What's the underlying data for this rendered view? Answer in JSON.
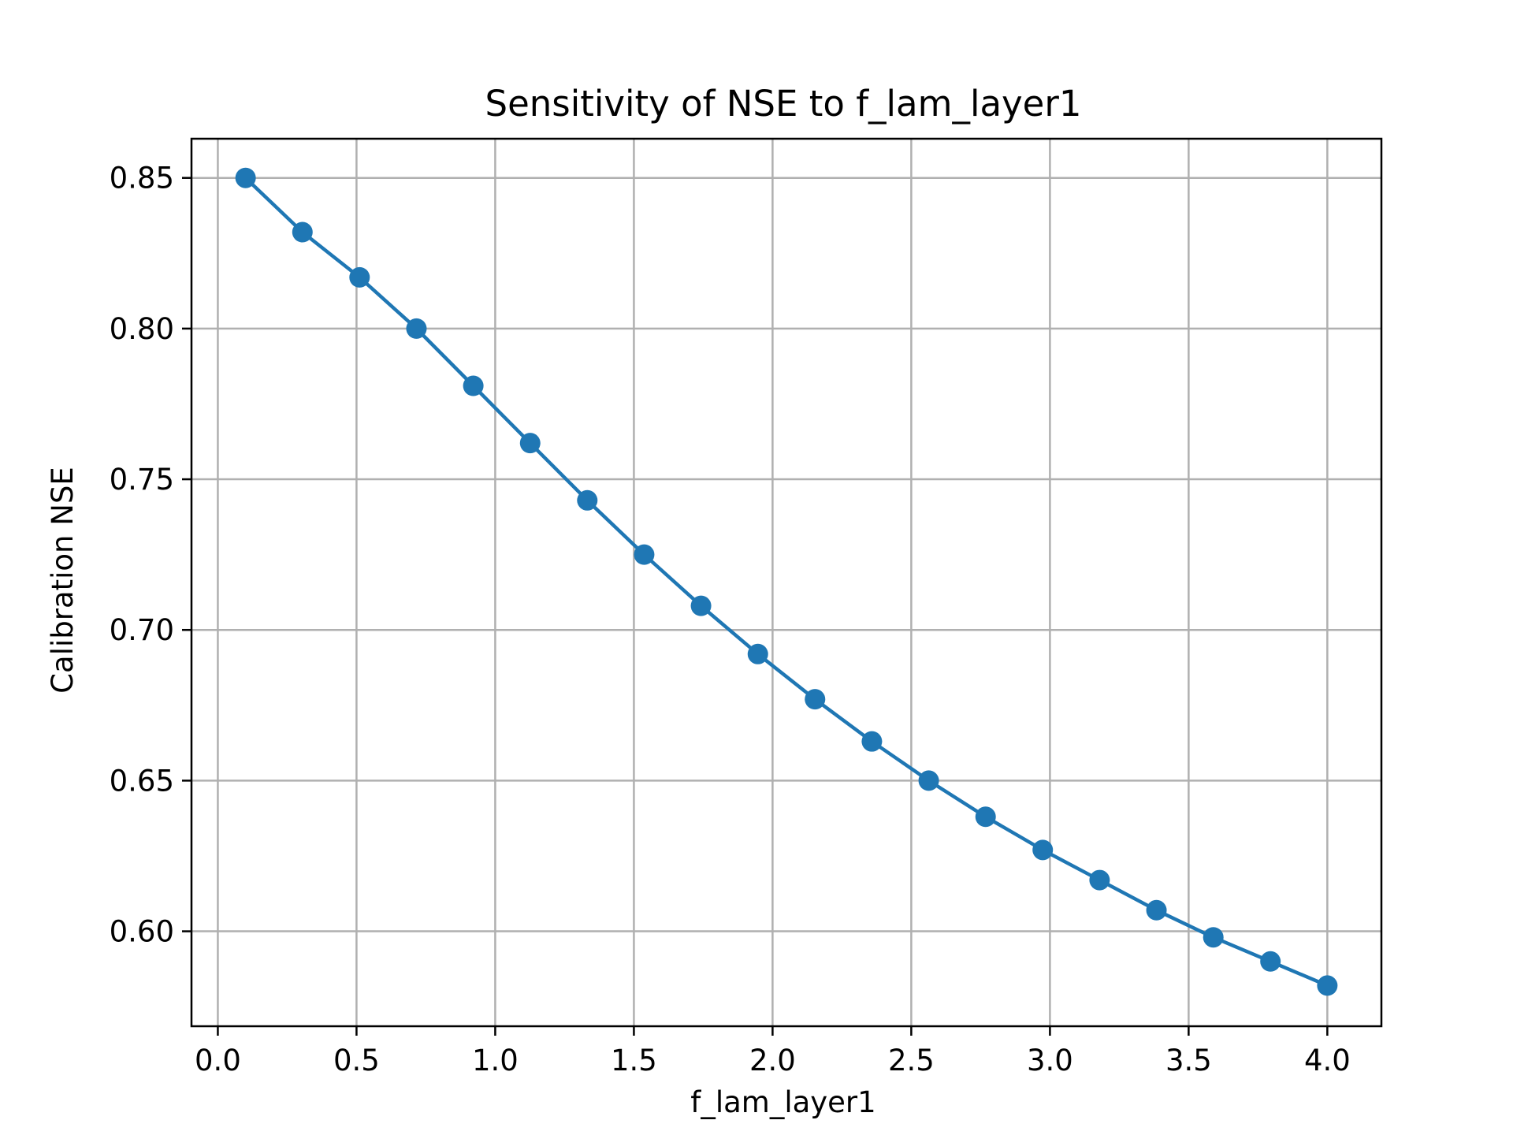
{
  "chart_data": {
    "type": "line",
    "title": "Sensitivity of NSE to f_lam_layer1",
    "xlabel": "f_lam_layer1",
    "ylabel": "Calibration NSE",
    "xlim": [
      -0.095,
      4.195
    ],
    "ylim": [
      0.5685,
      0.863
    ],
    "x_ticks": [
      0.0,
      0.5,
      1.0,
      1.5,
      2.0,
      2.5,
      3.0,
      3.5,
      4.0
    ],
    "x_tick_labels": [
      "0.0",
      "0.5",
      "1.0",
      "1.5",
      "2.0",
      "2.5",
      "3.0",
      "3.5",
      "4.0"
    ],
    "y_ticks": [
      0.6,
      0.65,
      0.7,
      0.75,
      0.8,
      0.85
    ],
    "y_tick_labels": [
      "0.60",
      "0.65",
      "0.70",
      "0.75",
      "0.80",
      "0.85"
    ],
    "grid": true,
    "series": [
      {
        "color": "#1f77b4",
        "marker": "circle",
        "x": [
          0.1,
          0.305,
          0.511,
          0.716,
          0.921,
          1.126,
          1.332,
          1.537,
          1.742,
          1.947,
          2.153,
          2.358,
          2.563,
          2.768,
          2.974,
          3.179,
          3.384,
          3.589,
          3.795,
          4.0
        ],
        "y": [
          0.85,
          0.832,
          0.817,
          0.8,
          0.781,
          0.762,
          0.743,
          0.725,
          0.708,
          0.692,
          0.677,
          0.663,
          0.65,
          0.638,
          0.627,
          0.617,
          0.607,
          0.598,
          0.59,
          0.582
        ]
      }
    ]
  }
}
